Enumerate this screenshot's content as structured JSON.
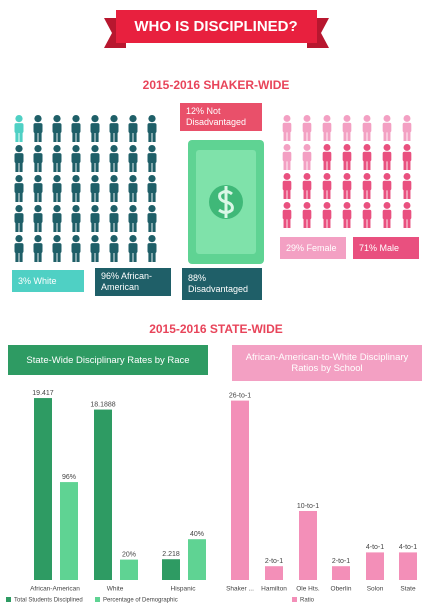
{
  "title": "WHO IS DISCIPLINED?",
  "shaker_header": "2015-2016 SHAKER-WIDE",
  "labels": {
    "white": "3% White",
    "african_american": "96% African-American",
    "not_disadvantaged": "12% Not Disadvantaged",
    "disadvantaged": "88% Disadvantaged",
    "female": "29% Female",
    "male": "71% Male"
  },
  "state_header": "2015-2016 STATE-WIDE",
  "chart_data": [
    {
      "type": "bar",
      "title": "State-Wide Disciplinary Rates by Race",
      "categories": [
        "African-American",
        "White",
        "Hispanic"
      ],
      "series": [
        {
          "name": "Total Students Disciplined",
          "color": "#2e9b63",
          "values": [
            19.417,
            18.1888,
            2.218
          ]
        },
        {
          "name": "Percentage of Demographic",
          "color": "#5fd393",
          "values": [
            96,
            20,
            40
          ],
          "value_labels": [
            "96%",
            "20%",
            "40%"
          ]
        }
      ]
    },
    {
      "type": "bar",
      "title": "African-American-to-White Disciplinary Ratios by School",
      "categories": [
        "Shaker ...",
        "Hamilton",
        "Ole Hts.",
        "Oberlin",
        "Solon",
        "State"
      ],
      "series": [
        {
          "name": "Ratio",
          "color": "#f38fb8",
          "values": [
            26,
            2,
            10,
            2,
            4,
            4
          ],
          "value_labels": [
            "26-to-1",
            "2-to-1",
            "10-to-1",
            "2-to-1",
            "4-to-1",
            "4-to-1"
          ]
        }
      ]
    }
  ]
}
